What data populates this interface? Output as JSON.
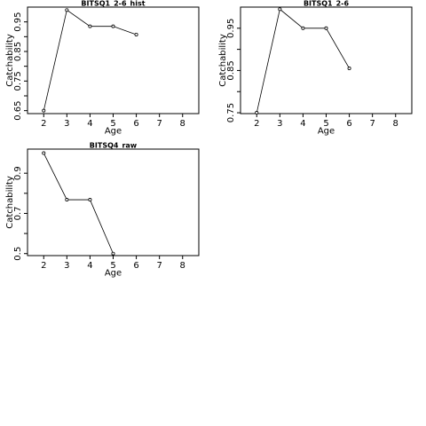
{
  "chart_data": [
    {
      "type": "line",
      "title": "BITSQ1_2-6_hist",
      "xlabel": "Age",
      "ylabel": "Catchability",
      "xlim": [
        1.3,
        8.7
      ],
      "ylim": [
        0.64,
        1.0
      ],
      "xticks": [
        2,
        3,
        4,
        5,
        6,
        7,
        8
      ],
      "yticks_labeled": [
        0.65,
        0.75,
        0.85,
        0.95
      ],
      "yticks_minor": [
        0.7,
        0.8,
        0.9
      ],
      "x": [
        2,
        3,
        4,
        5,
        6
      ],
      "y": [
        0.65,
        0.99,
        0.935,
        0.935,
        0.907
      ]
    },
    {
      "type": "line",
      "title": "BITSQ1_2-6",
      "xlabel": "Age",
      "ylabel": "Catchability",
      "xlim": [
        1.3,
        8.7
      ],
      "ylim": [
        0.748,
        1.0
      ],
      "xticks": [
        2,
        3,
        4,
        5,
        6,
        7,
        8
      ],
      "yticks_labeled": [
        0.75,
        0.85,
        0.95
      ],
      "yticks_minor": [
        0.8,
        0.9
      ],
      "x": [
        2,
        3,
        4,
        5,
        6
      ],
      "y": [
        0.75,
        0.995,
        0.95,
        0.95,
        0.855
      ]
    },
    {
      "type": "line",
      "title": "BITSQ4_raw",
      "xlabel": "Age",
      "ylabel": "Catchability",
      "xlim": [
        1.3,
        8.7
      ],
      "ylim": [
        0.49,
        1.02
      ],
      "xticks": [
        2,
        3,
        4,
        5,
        6,
        7,
        8
      ],
      "yticks_labeled": [
        0.5,
        0.7,
        0.9
      ],
      "yticks_minor": [
        0.6,
        0.8
      ],
      "x": [
        2,
        3,
        4,
        5
      ],
      "y": [
        1.0,
        0.768,
        0.768,
        0.5
      ]
    }
  ]
}
